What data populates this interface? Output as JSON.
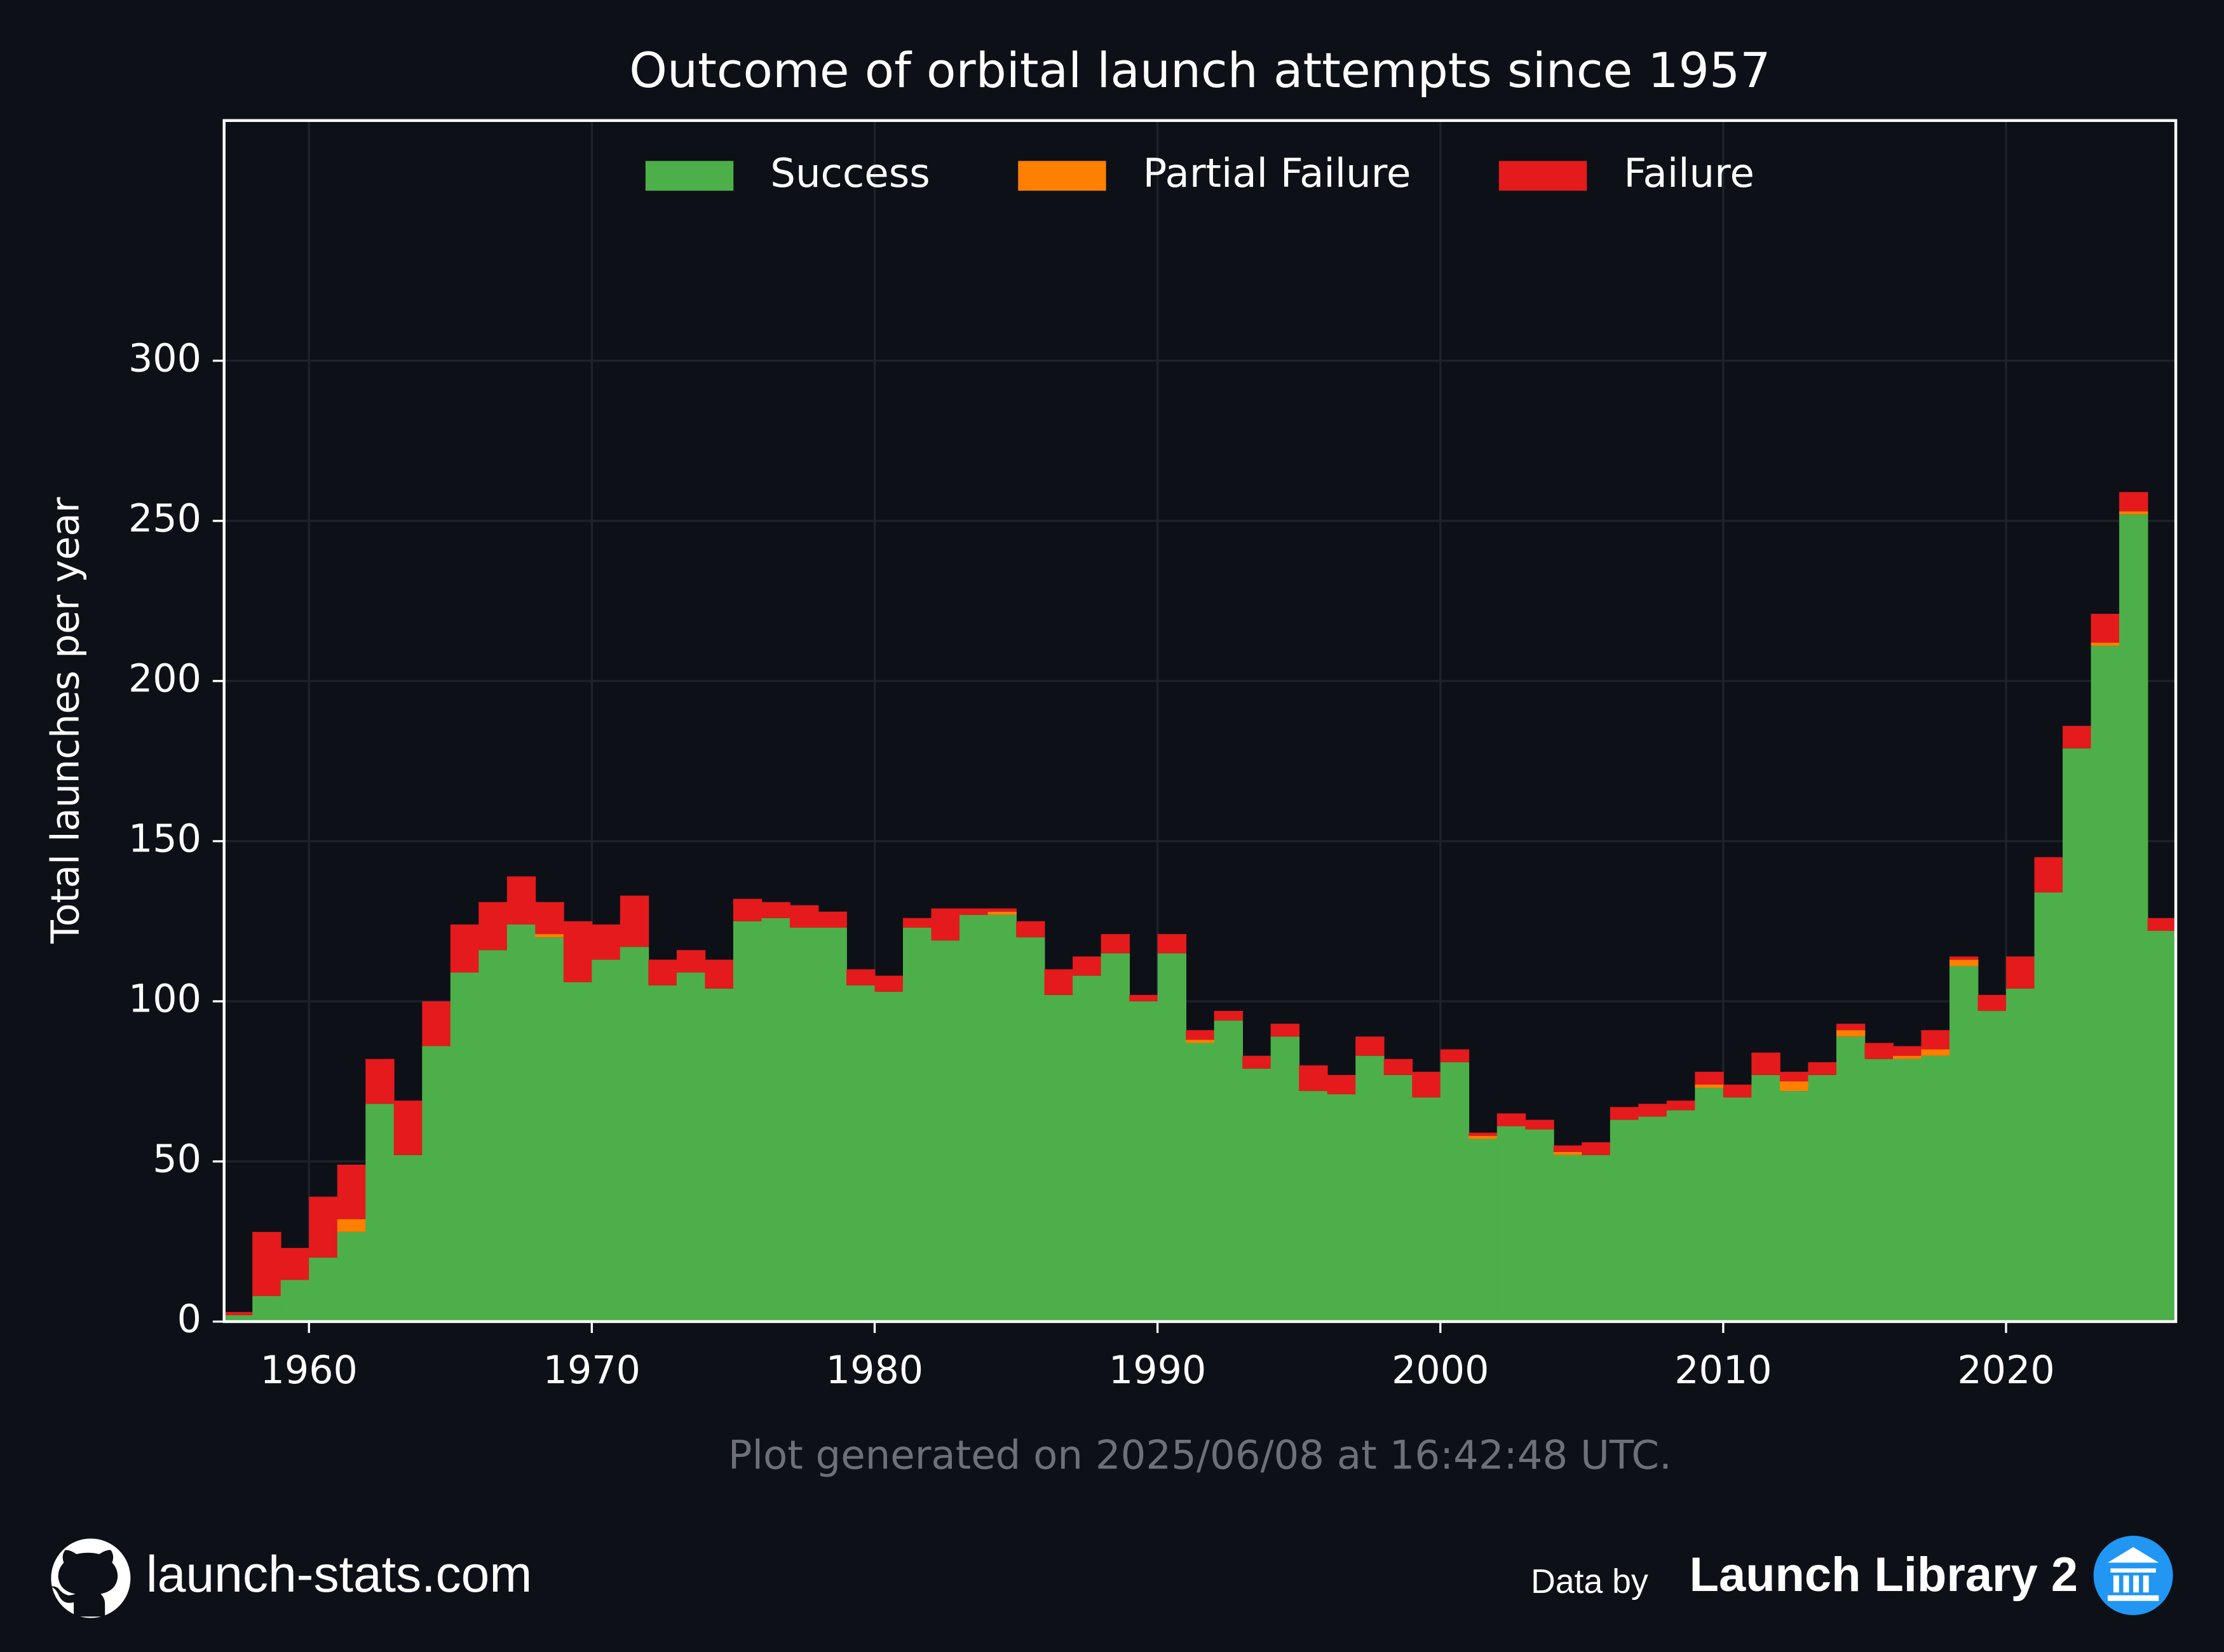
{
  "chart_data": {
    "type": "histogram",
    "title": "Outcome of orbital launch attempts since 1957",
    "ylabel": "Total launches per year",
    "bins": [
      1957,
      1958,
      1959,
      1960,
      1961,
      1962,
      1963,
      1964,
      1965,
      1966,
      1967,
      1968,
      1969,
      1970,
      1971,
      1972,
      1973,
      1974,
      1975,
      1976,
      1977,
      1978,
      1979,
      1980,
      1981,
      1982,
      1983,
      1984,
      1985,
      1986,
      1987,
      1988,
      1989,
      1990,
      1991,
      1992,
      1993,
      1994,
      1995,
      1996,
      1997,
      1998,
      1999,
      2000,
      2001,
      2002,
      2003,
      2004,
      2005,
      2006,
      2007,
      2008,
      2009,
      2010,
      2011,
      2012,
      2013,
      2014,
      2015,
      2016,
      2017,
      2018,
      2019,
      2020,
      2021,
      2022,
      2023,
      2024,
      2025,
      2026
    ],
    "stacked": true,
    "series": [
      {
        "name": "Success",
        "color": "#4daf4a",
        "values": [
          2,
          8,
          13,
          20,
          28,
          68,
          52,
          86,
          109,
          116,
          124,
          120,
          106,
          113,
          117,
          105,
          109,
          104,
          125,
          126,
          123,
          123,
          105,
          103,
          123,
          119,
          127,
          127,
          120,
          102,
          108,
          115,
          100,
          115,
          87,
          94,
          79,
          89,
          72,
          71,
          83,
          77,
          70,
          81,
          57,
          61,
          60,
          52,
          52,
          63,
          64,
          66,
          73,
          70,
          77,
          72,
          77,
          89,
          82,
          82,
          83,
          111,
          97,
          104,
          134,
          179,
          211,
          252,
          122
        ]
      },
      {
        "name": "Partial Failure",
        "color": "#ff7f00",
        "values": [
          0,
          0,
          0,
          0,
          4,
          0,
          0,
          0,
          0,
          0,
          0,
          1,
          0,
          0,
          0,
          0,
          0,
          0,
          0,
          0,
          0,
          0,
          0,
          0,
          0,
          0,
          0,
          1,
          0,
          0,
          0,
          0,
          0,
          0,
          1,
          0,
          0,
          0,
          0,
          0,
          0,
          0,
          0,
          0,
          1,
          0,
          0,
          1,
          0,
          0,
          0,
          0,
          1,
          0,
          0,
          3,
          0,
          2,
          0,
          1,
          2,
          2,
          0,
          0,
          0,
          0,
          1,
          1,
          0
        ]
      },
      {
        "name": "Failure",
        "color": "#e41a1c",
        "values": [
          1,
          20,
          10,
          19,
          17,
          14,
          17,
          14,
          15,
          15,
          15,
          10,
          19,
          11,
          16,
          8,
          7,
          9,
          7,
          5,
          7,
          5,
          5,
          5,
          3,
          10,
          2,
          1,
          5,
          8,
          6,
          6,
          2,
          6,
          3,
          3,
          4,
          4,
          8,
          6,
          6,
          5,
          8,
          4,
          1,
          4,
          3,
          2,
          4,
          4,
          4,
          3,
          4,
          4,
          7,
          3,
          4,
          2,
          5,
          3,
          6,
          1,
          5,
          10,
          11,
          7,
          9,
          6,
          4
        ]
      }
    ],
    "xlim": [
      1957,
      2026
    ],
    "xticks": [
      1960,
      1970,
      1980,
      1990,
      2000,
      2010,
      2020
    ],
    "ylim": [
      0,
      375
    ],
    "yticks": [
      0,
      50,
      100,
      150,
      200,
      250,
      300
    ],
    "grid": true,
    "legend": "upper center"
  },
  "footer": {
    "note": "Plot generated on 2025/06/08 at 16:42:48 UTC.",
    "site": "launch-stats.com",
    "credit_prefix": "Data by",
    "credit": "Launch Library 2"
  }
}
